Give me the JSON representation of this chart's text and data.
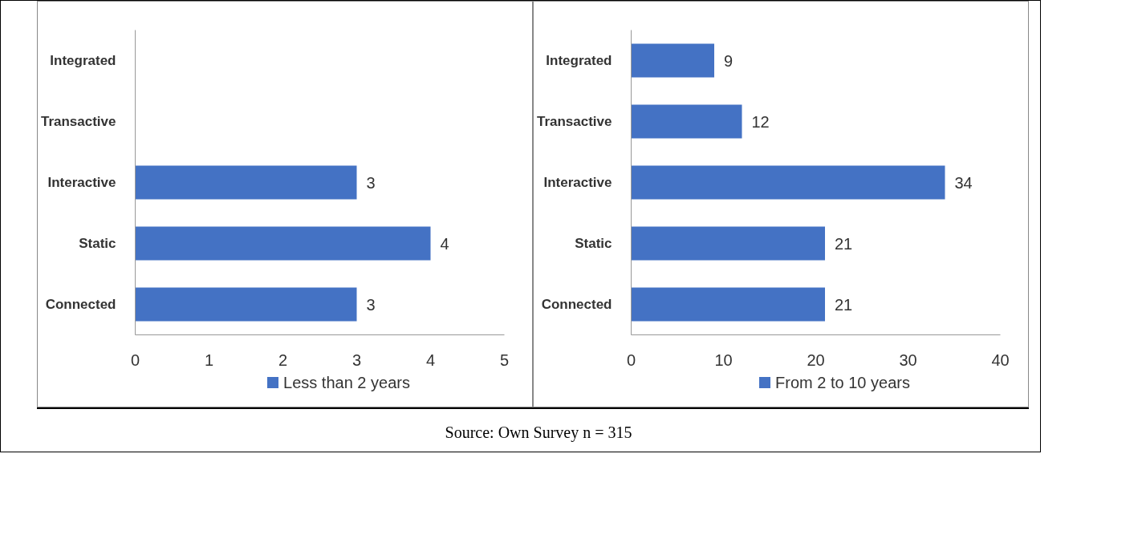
{
  "chart_data": [
    {
      "type": "bar",
      "orientation": "horizontal",
      "categories": [
        "Integrated",
        "Transactive",
        "Interactive",
        "Static",
        "Connected"
      ],
      "series": [
        {
          "name": "Less than 2 years",
          "color": "#4472c4",
          "values": [
            null,
            null,
            3,
            4,
            3
          ]
        }
      ],
      "xlim": [
        0,
        5
      ],
      "xticks": [
        0,
        1,
        2,
        3,
        4,
        5
      ],
      "data_labels": true,
      "legend": "bottom",
      "annotations": [
        "Source: Own Survey n = 315"
      ]
    },
    {
      "type": "bar",
      "orientation": "horizontal",
      "categories": [
        "Integrated",
        "Transactive",
        "Interactive",
        "Static",
        "Connected"
      ],
      "series": [
        {
          "name": "From 2 to 10 years",
          "color": "#4472c4",
          "values": [
            9,
            12,
            34,
            21,
            21
          ]
        }
      ],
      "xlim": [
        0,
        40
      ],
      "xticks": [
        0,
        10,
        20,
        30,
        40
      ],
      "data_labels": true,
      "legend": "bottom"
    }
  ]
}
